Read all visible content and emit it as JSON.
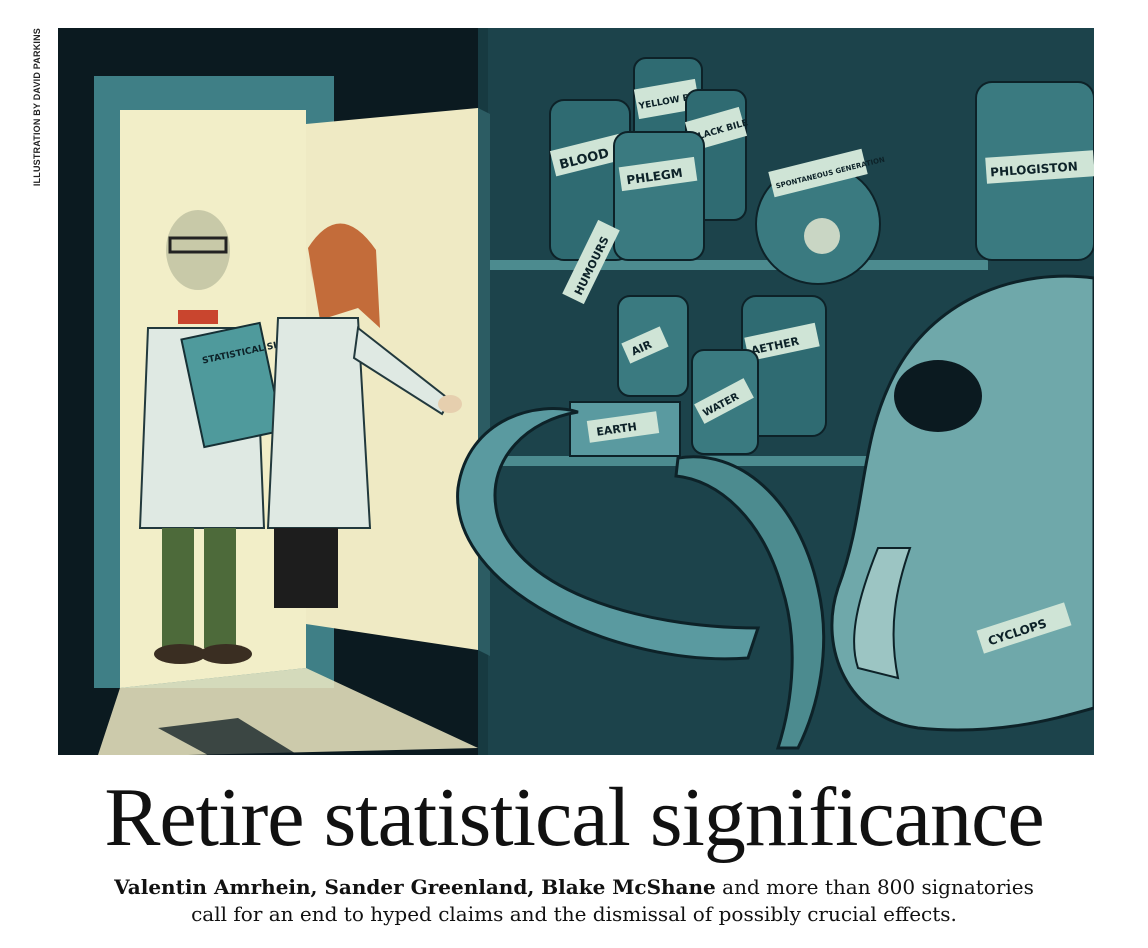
{
  "credit": "ILLUSTRATION BY DAVID PARKINS",
  "illustration": {
    "jar_labels": {
      "blood": "BLOOD",
      "yellow_bile": "YELLOW BILE",
      "black_bile": "BLACK BILE",
      "phlegm": "PHLEGM",
      "spontaneous_generation": "SPONTANEOUS GENERATION",
      "phlogiston": "PHLOGISTON",
      "humours": "HUMOURS",
      "air": "AIR",
      "aether": "AETHER",
      "water": "WATER",
      "earth": "EARTH",
      "cyclops": "CYCLOPS"
    },
    "folder_label": "STATISTICAL SIGNIFICANCE",
    "colors": {
      "teal": "#3f7f86",
      "dark": "#0b1a20",
      "light": "#efeac4",
      "coat": "#dfe9e3"
    }
  },
  "headline": "Retire statistical significance",
  "standfirst": {
    "authors": "Valentin Amrhein, Sander Greenland, Blake McShane",
    "line1_rest": " and more than 800 signatories",
    "line2": "call for an end to hyped claims and the dismissal of possibly crucial effects."
  }
}
